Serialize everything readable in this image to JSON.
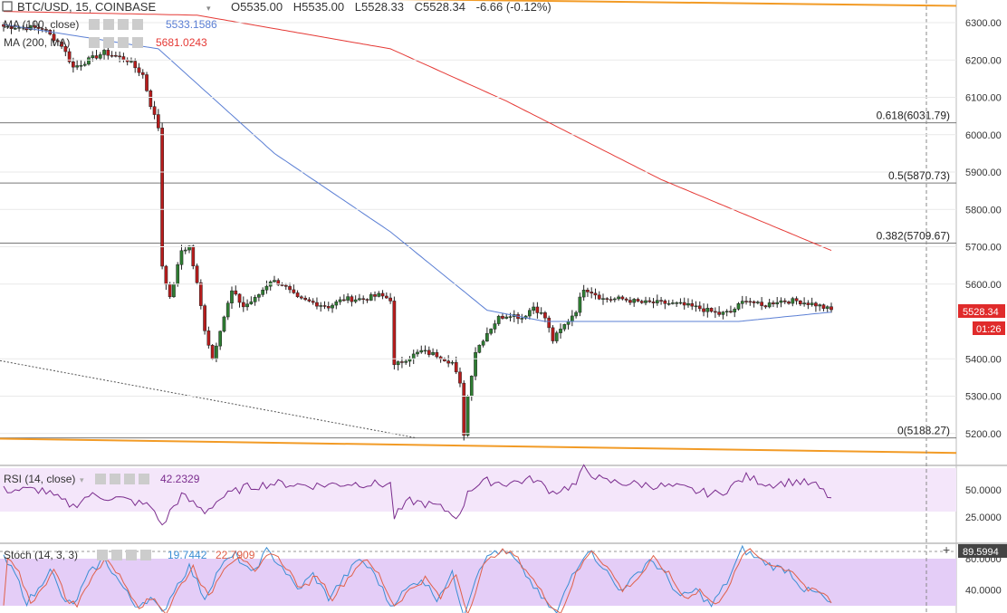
{
  "header": {
    "symbol": "BTC/USD, 15, COINBASE",
    "ohlc": [
      {
        "k": "O",
        "v": "5535.00"
      },
      {
        "k": "H",
        "v": "5535.00"
      },
      {
        "k": "L",
        "v": "5528.33"
      },
      {
        "k": "C",
        "v": "5528.34"
      }
    ],
    "change": "-6.66 (-0.12%)"
  },
  "colors": {
    "up": "#2e7d32",
    "down": "#b71c1c",
    "ma100": "#5b7fd4",
    "ma200": "#e53935",
    "fib": "#777777",
    "trend_orange": "#f29b26",
    "rsi": "#7b2d8e",
    "rsi_band": "#f4e6fa",
    "stoch_band": "#e4cdf7",
    "stoch_k": "#3b8ed4",
    "stoch_d": "#e0614a",
    "badge_red": "#e02b2b",
    "axis_text": "#333333",
    "grid": "#e9e9e9"
  },
  "indicators": [
    {
      "id": "ma100",
      "label": "MA (100, close)",
      "value": "5533.1586"
    },
    {
      "id": "ma200",
      "label": "MA (200, MA)",
      "value": "5681.0243"
    }
  ],
  "rsi_panel": {
    "label": "RSI (14, close)",
    "value": "42.2329"
  },
  "stoch_panel": {
    "label": "Stoch (14, 3, 3)",
    "k_value": "19.7442",
    "d_value": "22.7909"
  },
  "price_badge": "5528.34",
  "countdown": "01:26",
  "crosshair_value": "89.5994",
  "fib_levels": [
    {
      "ratio": "0.618",
      "price": 6031.79,
      "label": "0.618(6031.79)"
    },
    {
      "ratio": "0.5",
      "price": 5870.73,
      "label": "0.5(5870.73)"
    },
    {
      "ratio": "0.382",
      "price": 5709.67,
      "label": "0.382(5709.67)"
    },
    {
      "ratio": "0",
      "price": 5188.27,
      "label": "0(5188.27)"
    }
  ],
  "price_axis": [
    "6300.00",
    "6200.00",
    "6100.00",
    "6000.00",
    "5900.00",
    "5800.00",
    "5700.00",
    "5600.00",
    "5400.00",
    "5300.00",
    "5200.00"
  ],
  "rsi_axis": [
    "50.0000",
    "25.0000"
  ],
  "stoch_axis": [
    "80.0000",
    "40.0000"
  ],
  "chart_data": {
    "type": "candlestick",
    "title": "BTC/USD, 15, COINBASE",
    "ylim": [
      5130,
      6360
    ],
    "close_anchors": [
      [
        0,
        6290
      ],
      [
        10,
        6285
      ],
      [
        15,
        6240
      ],
      [
        18,
        6180
      ],
      [
        22,
        6200
      ],
      [
        26,
        6220
      ],
      [
        32,
        6200
      ],
      [
        36,
        6160
      ],
      [
        38,
        6080
      ],
      [
        40,
        6020
      ],
      [
        41,
        5650
      ],
      [
        43,
        5560
      ],
      [
        46,
        5690
      ],
      [
        48,
        5700
      ],
      [
        50,
        5600
      ],
      [
        52,
        5480
      ],
      [
        54,
        5400
      ],
      [
        56,
        5480
      ],
      [
        59,
        5580
      ],
      [
        62,
        5540
      ],
      [
        65,
        5560
      ],
      [
        69,
        5610
      ],
      [
        72,
        5600
      ],
      [
        76,
        5560
      ],
      [
        80,
        5550
      ],
      [
        84,
        5540
      ],
      [
        88,
        5560
      ],
      [
        93,
        5560
      ],
      [
        97,
        5570
      ],
      [
        100,
        5560
      ],
      [
        101,
        5380
      ],
      [
        104,
        5400
      ],
      [
        108,
        5420
      ],
      [
        112,
        5410
      ],
      [
        116,
        5390
      ],
      [
        118,
        5330
      ],
      [
        119,
        5200
      ],
      [
        120,
        5300
      ],
      [
        122,
        5420
      ],
      [
        125,
        5470
      ],
      [
        128,
        5510
      ],
      [
        131,
        5520
      ],
      [
        134,
        5510
      ],
      [
        137,
        5540
      ],
      [
        140,
        5510
      ],
      [
        142,
        5450
      ],
      [
        145,
        5490
      ],
      [
        148,
        5530
      ],
      [
        150,
        5590
      ],
      [
        152,
        5580
      ],
      [
        155,
        5560
      ],
      [
        160,
        5560
      ],
      [
        165,
        5550
      ],
      [
        170,
        5550
      ],
      [
        175,
        5545
      ],
      [
        180,
        5535
      ],
      [
        185,
        5520
      ],
      [
        188,
        5525
      ],
      [
        192,
        5560
      ],
      [
        196,
        5540
      ],
      [
        200,
        5555
      ],
      [
        205,
        5555
      ],
      [
        210,
        5545
      ],
      [
        214,
        5530
      ]
    ],
    "ma100_anchors": [
      [
        0,
        6295
      ],
      [
        40,
        6230
      ],
      [
        70,
        5950
      ],
      [
        100,
        5740
      ],
      [
        125,
        5530
      ],
      [
        140,
        5500
      ],
      [
        170,
        5500
      ],
      [
        190,
        5500
      ],
      [
        214,
        5525
      ]
    ],
    "ma200_anchors": [
      [
        0,
        6330
      ],
      [
        50,
        6320
      ],
      [
        100,
        6230
      ],
      [
        130,
        6090
      ],
      [
        170,
        5880
      ],
      [
        214,
        5690
      ]
    ],
    "rsi_ylim": [
      0,
      100
    ],
    "rsi_anchors": [
      [
        0,
        50
      ],
      [
        10,
        50
      ],
      [
        15,
        40
      ],
      [
        18,
        35
      ],
      [
        22,
        45
      ],
      [
        30,
        42
      ],
      [
        38,
        35
      ],
      [
        40,
        25
      ],
      [
        41,
        15
      ],
      [
        43,
        30
      ],
      [
        46,
        45
      ],
      [
        52,
        30
      ],
      [
        56,
        42
      ],
      [
        62,
        52
      ],
      [
        70,
        56
      ],
      [
        80,
        54
      ],
      [
        90,
        56
      ],
      [
        100,
        55
      ],
      [
        101,
        25
      ],
      [
        105,
        40
      ],
      [
        112,
        35
      ],
      [
        118,
        25
      ],
      [
        120,
        50
      ],
      [
        125,
        58
      ],
      [
        130,
        56
      ],
      [
        137,
        60
      ],
      [
        142,
        48
      ],
      [
        148,
        55
      ],
      [
        150,
        70
      ],
      [
        155,
        58
      ],
      [
        165,
        55
      ],
      [
        175,
        52
      ],
      [
        180,
        48
      ],
      [
        185,
        46
      ],
      [
        192,
        62
      ],
      [
        198,
        55
      ],
      [
        205,
        58
      ],
      [
        210,
        54
      ],
      [
        214,
        42
      ]
    ],
    "stoch_ylim": [
      0,
      100
    ],
    "stoch_anchors": [
      [
        0,
        80
      ],
      [
        3,
        60
      ],
      [
        6,
        25
      ],
      [
        9,
        40
      ],
      [
        12,
        70
      ],
      [
        15,
        30
      ],
      [
        18,
        20
      ],
      [
        22,
        60
      ],
      [
        26,
        80
      ],
      [
        30,
        50
      ],
      [
        34,
        20
      ],
      [
        38,
        30
      ],
      [
        41,
        10
      ],
      [
        44,
        40
      ],
      [
        48,
        70
      ],
      [
        52,
        30
      ],
      [
        56,
        70
      ],
      [
        60,
        85
      ],
      [
        64,
        60
      ],
      [
        68,
        90
      ],
      [
        72,
        70
      ],
      [
        76,
        40
      ],
      [
        80,
        60
      ],
      [
        84,
        30
      ],
      [
        88,
        55
      ],
      [
        92,
        80
      ],
      [
        96,
        60
      ],
      [
        100,
        20
      ],
      [
        104,
        40
      ],
      [
        108,
        55
      ],
      [
        112,
        30
      ],
      [
        116,
        60
      ],
      [
        119,
        10
      ],
      [
        123,
        70
      ],
      [
        127,
        90
      ],
      [
        131,
        85
      ],
      [
        135,
        60
      ],
      [
        139,
        30
      ],
      [
        143,
        10
      ],
      [
        147,
        60
      ],
      [
        151,
        92
      ],
      [
        155,
        70
      ],
      [
        159,
        40
      ],
      [
        163,
        55
      ],
      [
        167,
        80
      ],
      [
        171,
        60
      ],
      [
        175,
        30
      ],
      [
        179,
        40
      ],
      [
        183,
        20
      ],
      [
        187,
        50
      ],
      [
        191,
        92
      ],
      [
        195,
        80
      ],
      [
        199,
        70
      ],
      [
        203,
        65
      ],
      [
        207,
        40
      ],
      [
        211,
        35
      ],
      [
        214,
        20
      ]
    ]
  }
}
